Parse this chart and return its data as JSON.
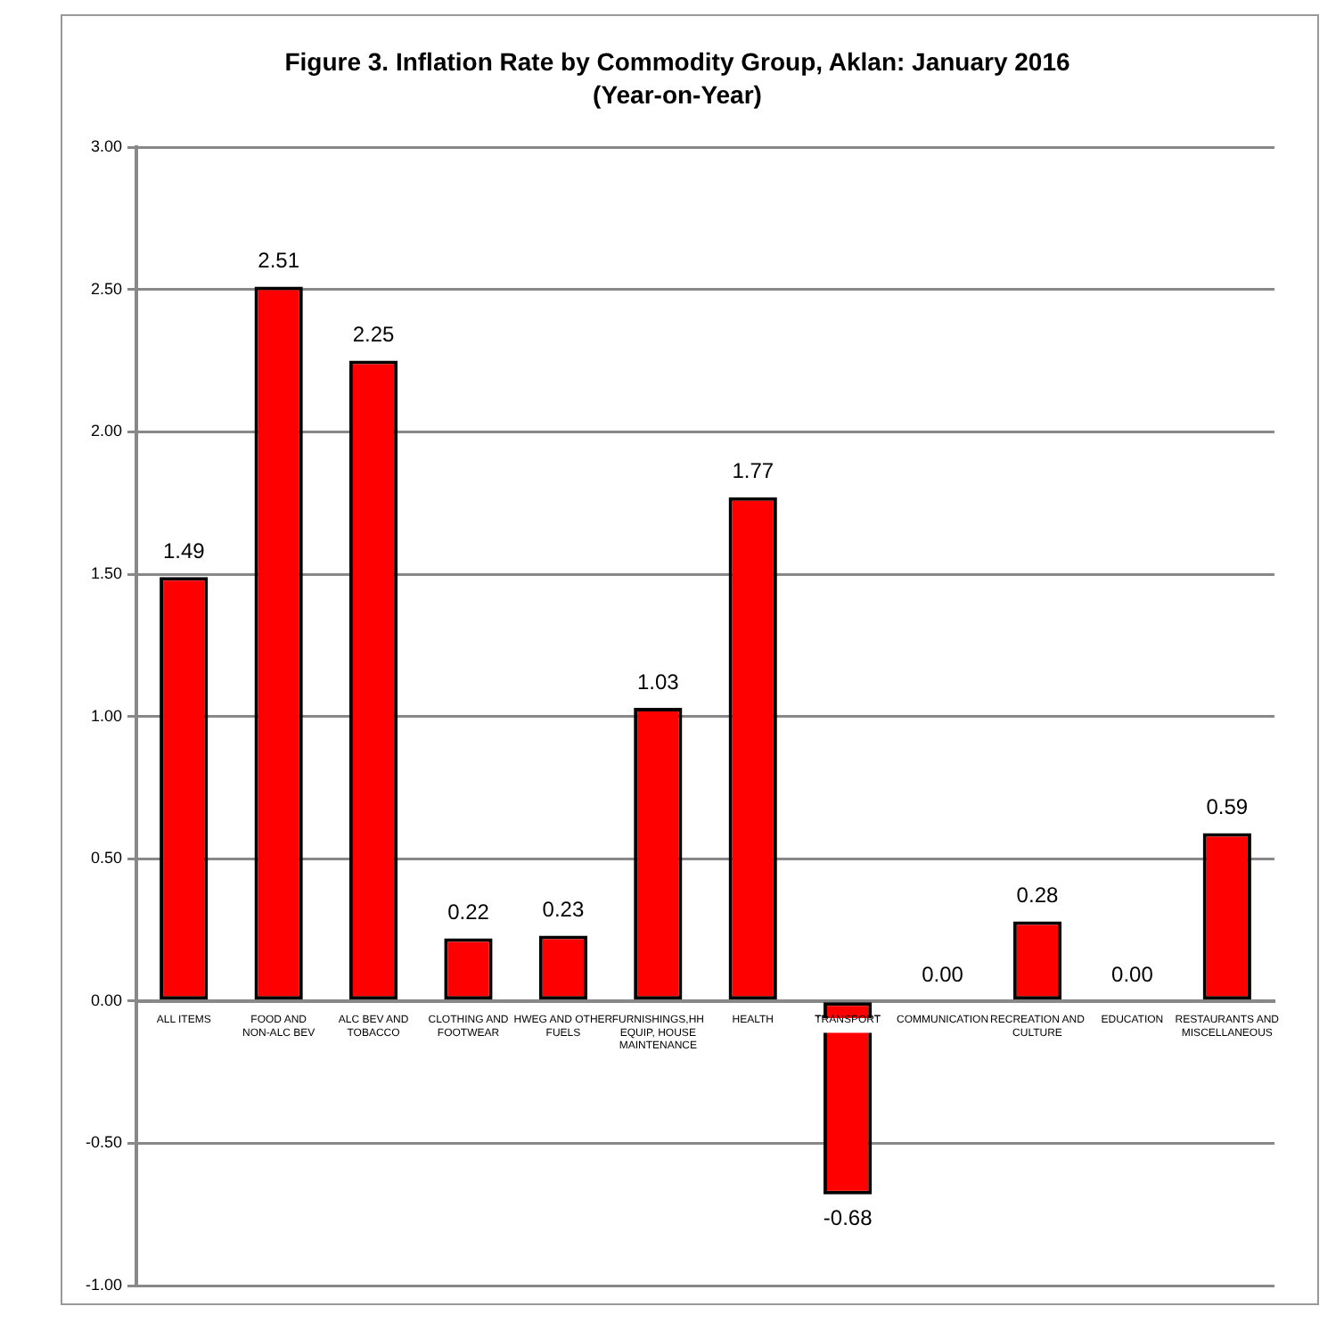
{
  "chart_data": {
    "type": "bar",
    "title": "Figure 3. Inflation Rate by Commodity Group, Aklan: January 2016",
    "subtitle": "(Year-on-Year)",
    "categories": [
      "ALL ITEMS",
      "FOOD AND NON-ALC BEV",
      "ALC BEV AND TOBACCO",
      "CLOTHING AND FOOTWEAR",
      "HWEG AND OTHER FUELS",
      "FURNISHINGS,HH EQUIP, HOUSE MAINTENANCE",
      "HEALTH",
      "TRANSPORT",
      "COMMUNICATION",
      "RECREATION AND CULTURE",
      "EDUCATION",
      "RESTAURANTS AND MISCELLANEOUS"
    ],
    "values": [
      1.49,
      2.51,
      2.25,
      0.22,
      0.23,
      1.03,
      1.77,
      -0.68,
      0,
      0.28,
      0,
      0.59
    ],
    "value_labels": [
      "1.49",
      "2.51",
      "2.25",
      "0.22",
      "0.23",
      "1.03",
      "1.77",
      "-0.68",
      "0.00",
      "0.28",
      "0.00",
      "0.59"
    ],
    "color": "#ff0000",
    "ylim": [
      -1,
      3
    ],
    "yticks": [
      {
        "value": -1,
        "label": "-1.00"
      },
      {
        "value": -0.5,
        "label": "-0.50"
      },
      {
        "value": 0,
        "label": "0.00"
      },
      {
        "value": 0.5,
        "label": "0.50"
      },
      {
        "value": 1,
        "label": "1.00"
      },
      {
        "value": 1.5,
        "label": "1.50"
      },
      {
        "value": 2,
        "label": "2.00"
      },
      {
        "value": 2.5,
        "label": "2.50"
      },
      {
        "value": 3,
        "label": "3.00"
      }
    ],
    "grid": "y"
  }
}
